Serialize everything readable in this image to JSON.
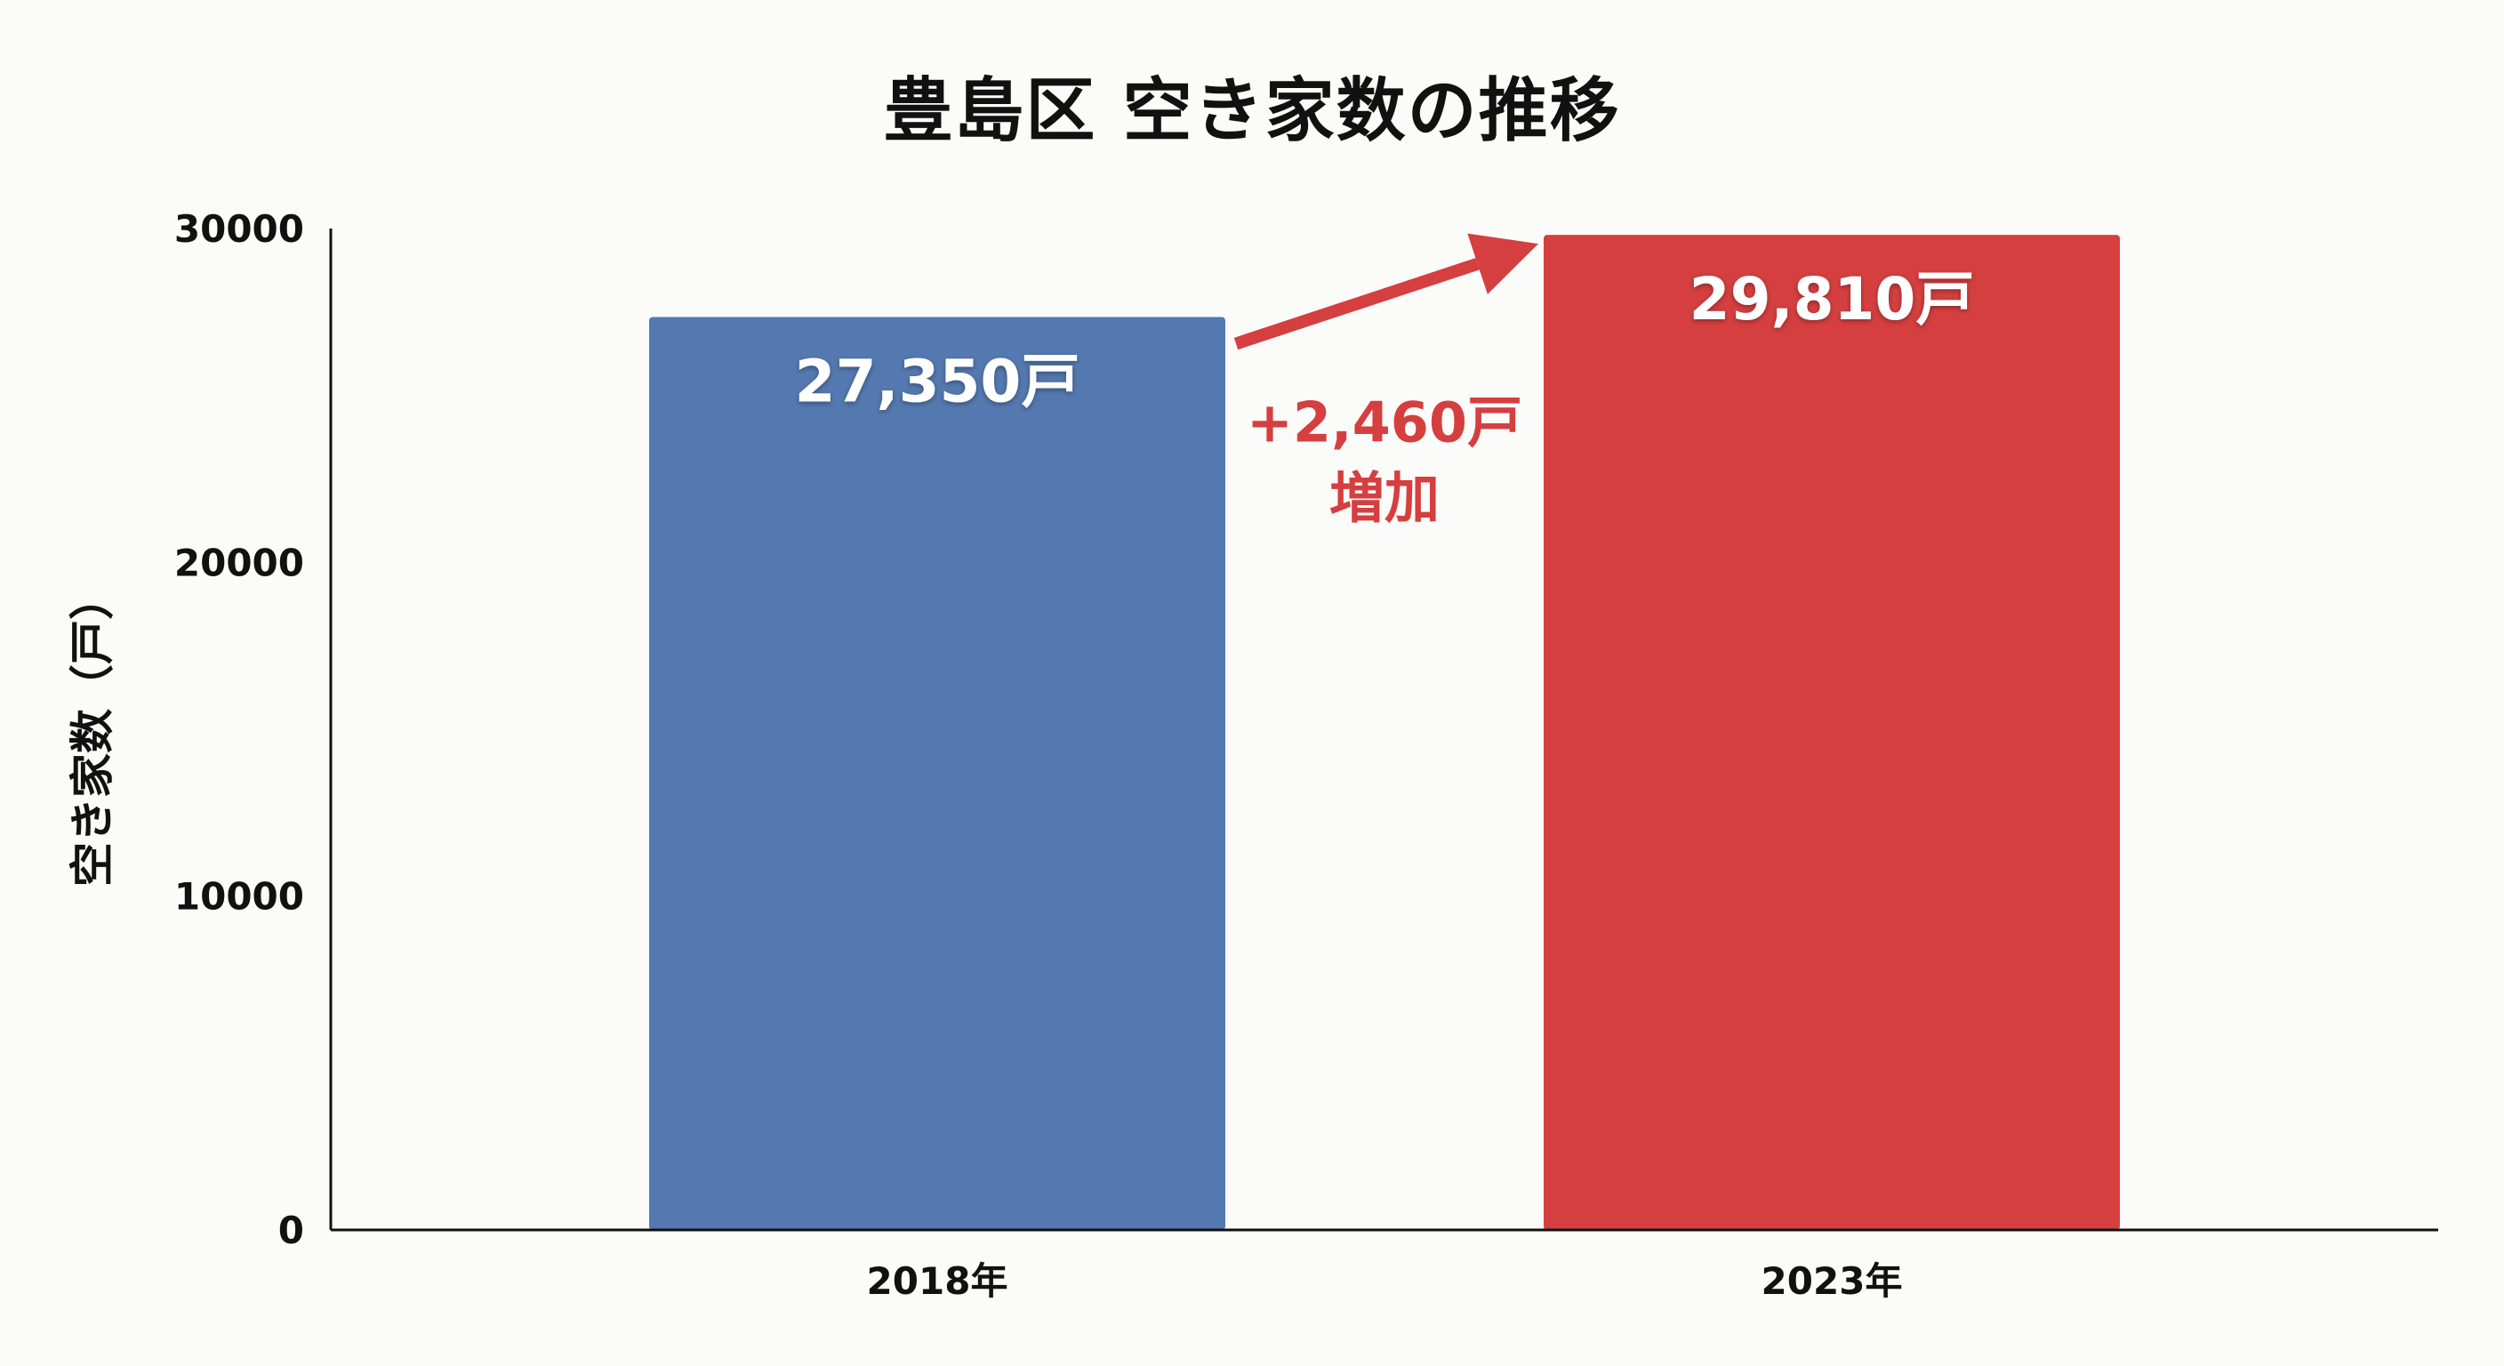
{
  "chart_data": {
    "type": "bar",
    "title": "豊島区 空き家数の推移",
    "ylabel": "空き家数（戸）",
    "xlabel": "",
    "categories": [
      "2018年",
      "2023年"
    ],
    "values": [
      27350,
      29810
    ],
    "value_labels": [
      "27,350戸",
      "29,810戸"
    ],
    "bar_colors": [
      "#5479b0",
      "#d53f3f"
    ],
    "ylim": [
      0,
      30000
    ],
    "yticks": [
      "0",
      "10000",
      "20000",
      "30000"
    ],
    "grid": false,
    "annotation": {
      "line1": "+2,460戸",
      "line2": "増加",
      "color": "#d53f3f"
    }
  }
}
